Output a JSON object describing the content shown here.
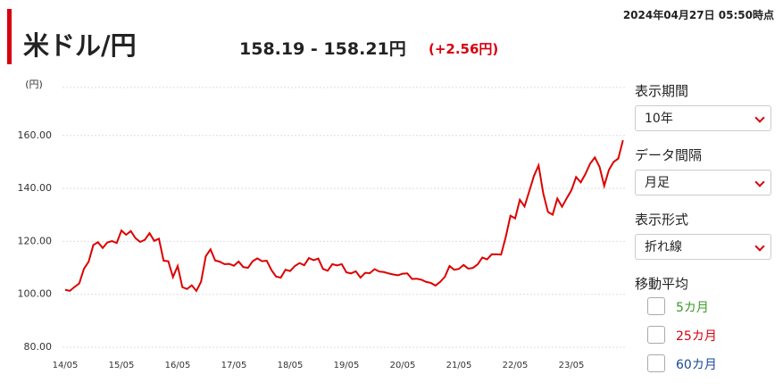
{
  "header": {
    "title": "米ドル/円",
    "timestamp": "2024年04月27日 05:50時点",
    "price": "158.19 - 158.21円",
    "change": "(+2.56円)"
  },
  "controls": {
    "period_label": "表示期間",
    "period": "10年",
    "interval_label": "データ間隔",
    "interval": "月足",
    "style_label": "表示形式",
    "style": "折れ線",
    "ma_label": "移動平均",
    "ma": [
      {
        "label": "5カ月",
        "color": "#3a9a2a"
      },
      {
        "label": "25カ月",
        "color": "#d7000f"
      },
      {
        "label": "60カ月",
        "color": "#1a4a9a"
      }
    ]
  },
  "chart_data": {
    "type": "line",
    "y_unit": "(円)",
    "color": "#dd0000",
    "grid": true,
    "ylim": [
      80,
      180
    ],
    "yticks": [
      {
        "value": 80,
        "label": "80.00"
      },
      {
        "value": 100,
        "label": "100.00"
      },
      {
        "value": 120,
        "label": "120.00"
      },
      {
        "value": 140,
        "label": "140.00"
      },
      {
        "value": 160,
        "label": "160.00"
      }
    ],
    "categories": [
      "14/05",
      null,
      null,
      null,
      null,
      null,
      null,
      null,
      null,
      null,
      null,
      null,
      "15/05",
      null,
      null,
      null,
      null,
      null,
      null,
      null,
      null,
      null,
      null,
      null,
      "16/05",
      null,
      null,
      null,
      null,
      null,
      null,
      null,
      null,
      null,
      null,
      null,
      "17/05",
      null,
      null,
      null,
      null,
      null,
      null,
      null,
      null,
      null,
      null,
      null,
      "18/05",
      null,
      null,
      null,
      null,
      null,
      null,
      null,
      null,
      null,
      null,
      null,
      "19/05",
      null,
      null,
      null,
      null,
      null,
      null,
      null,
      null,
      null,
      null,
      null,
      "20/05",
      null,
      null,
      null,
      null,
      null,
      null,
      null,
      null,
      null,
      null,
      null,
      "21/05",
      null,
      null,
      null,
      null,
      null,
      null,
      null,
      null,
      null,
      null,
      null,
      "22/05",
      null,
      null,
      null,
      null,
      null,
      null,
      null,
      null,
      null,
      null,
      null,
      "23/05",
      null,
      null,
      null,
      null,
      null,
      null,
      null,
      null,
      null,
      null,
      null
    ],
    "values": [
      101.7,
      101.3,
      102.8,
      104.1,
      109.6,
      112.3,
      118.6,
      119.7,
      117.5,
      119.6,
      120.1,
      119.4,
      124.1,
      122.5,
      123.9,
      121.2,
      119.8,
      120.6,
      123.1,
      120.2,
      121.0,
      112.7,
      112.5,
      106.5,
      110.7,
      102.7,
      102.0,
      103.4,
      101.3,
      104.8,
      114.4,
      117.0,
      112.8,
      112.3,
      111.4,
      111.5,
      110.8,
      112.4,
      110.3,
      110.0,
      112.5,
      113.6,
      112.5,
      112.7,
      109.2,
      106.7,
      106.3,
      109.3,
      108.8,
      110.7,
      111.8,
      111.0,
      113.7,
      112.9,
      113.5,
      109.6,
      108.9,
      111.4,
      110.9,
      111.4,
      108.3,
      107.9,
      108.7,
      106.3,
      108.1,
      108.0,
      109.5,
      108.6,
      108.4,
      107.9,
      107.5,
      107.2,
      107.8,
      107.9,
      105.8,
      105.9,
      105.5,
      104.7,
      104.3,
      103.3,
      104.7,
      106.6,
      110.7,
      109.3,
      109.6,
      111.1,
      109.7,
      110.0,
      111.3,
      113.9,
      113.2,
      115.1,
      115.1,
      115.0,
      121.7,
      129.7,
      128.7,
      135.7,
      133.2,
      138.9,
      144.7,
      148.7,
      138.1,
      131.1,
      130.1,
      136.2,
      133.1,
      136.3,
      139.3,
      144.3,
      142.3,
      145.5,
      149.4,
      151.7,
      148.2,
      141.0,
      147.0,
      150.0,
      151.3,
      158.2
    ]
  }
}
